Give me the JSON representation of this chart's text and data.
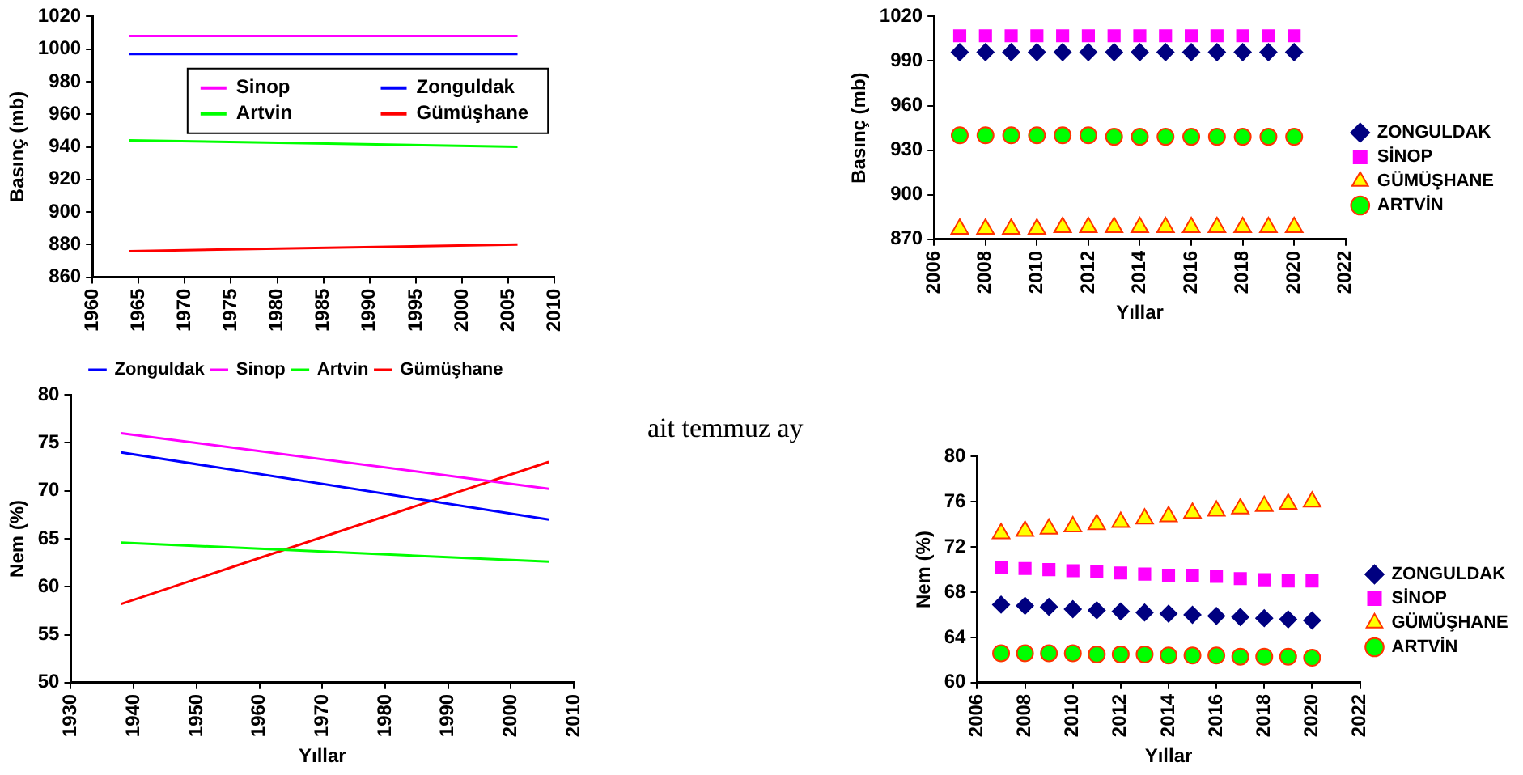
{
  "chart_data": [
    {
      "type": "line",
      "ylabel": "Basınç (mb)",
      "x": [
        1964,
        2006
      ],
      "xlim": [
        1960,
        2010
      ],
      "xticks": [
        1960,
        1965,
        1970,
        1975,
        1980,
        1985,
        1990,
        1995,
        2000,
        2005,
        2010
      ],
      "ylim": [
        860,
        1020
      ],
      "yticks": [
        860,
        880,
        900,
        920,
        940,
        960,
        980,
        1000,
        1020
      ],
      "grid": false,
      "legend": "top right",
      "marker": "none",
      "series": [
        {
          "name": "Sinop",
          "color": "#ff00ff",
          "values": [
            1008,
            1008
          ]
        },
        {
          "name": "Zonguldak",
          "color": "#0000ff",
          "values": [
            997,
            997
          ]
        },
        {
          "name": "Artvin",
          "color": "#00ff00",
          "values": [
            944,
            940
          ]
        },
        {
          "name": "Gümüşhane",
          "color": "#ff0000",
          "values": [
            876,
            880
          ]
        }
      ]
    },
    {
      "type": "scatter",
      "xlabel": "Yıllar",
      "ylabel": "Basınç (mb)",
      "x": [
        2007,
        2008,
        2009,
        2010,
        2011,
        2012,
        2013,
        2014,
        2015,
        2016,
        2017,
        2018,
        2019,
        2020
      ],
      "xlim": [
        2006,
        2022
      ],
      "xticks": [
        2006,
        2008,
        2010,
        2012,
        2014,
        2016,
        2018,
        2020,
        2022
      ],
      "ylim": [
        870,
        1020
      ],
      "yticks": [
        870,
        900,
        930,
        960,
        990,
        1020
      ],
      "grid": false,
      "legend": "right",
      "series": [
        {
          "name": "ZONGULDAK",
          "color": "#000080",
          "marker": "diamond",
          "values": [
            996,
            996,
            996,
            996,
            996,
            996,
            996,
            996,
            996,
            996,
            996,
            996,
            996,
            996
          ]
        },
        {
          "name": "SİNOP",
          "color": "#ff00ff",
          "marker": "square",
          "values": [
            1007,
            1007,
            1007,
            1007,
            1007,
            1007,
            1007,
            1007,
            1007,
            1007,
            1007,
            1007,
            1007,
            1007
          ]
        },
        {
          "name": "GÜMÜŞHANE",
          "color": "#ffff00",
          "marker": "triangle",
          "values": [
            877,
            877,
            877,
            877,
            878,
            878,
            878,
            878,
            878,
            878,
            878,
            878,
            878,
            878
          ]
        },
        {
          "name": "ARTVİN",
          "color": "#00ff00",
          "marker": "circle",
          "values": [
            940,
            940,
            940,
            940,
            940,
            940,
            939,
            939,
            939,
            939,
            939,
            939,
            939,
            939
          ]
        }
      ]
    },
    {
      "type": "line",
      "xlabel": "Yıllar",
      "ylabel": "Nem (%)",
      "x": [
        1938,
        2006
      ],
      "xlim": [
        1930,
        2010
      ],
      "xticks": [
        1930,
        1940,
        1950,
        1960,
        1970,
        1980,
        1990,
        2000,
        2010
      ],
      "ylim": [
        50,
        80
      ],
      "yticks": [
        50,
        55,
        60,
        65,
        70,
        75,
        80
      ],
      "grid": false,
      "legend": "top",
      "marker": "none",
      "series": [
        {
          "name": "Zonguldak",
          "color": "#0000ff",
          "values": [
            74,
            67
          ]
        },
        {
          "name": "Sinop",
          "color": "#ff00ff",
          "values": [
            76,
            70.2
          ]
        },
        {
          "name": "Artvin",
          "color": "#00ff00",
          "values": [
            64.6,
            62.6
          ]
        },
        {
          "name": "Gümüşhane",
          "color": "#ff0000",
          "values": [
            58.2,
            73
          ]
        }
      ]
    },
    {
      "type": "other",
      "annotations": [
        "ait temmuz ay"
      ]
    },
    {
      "type": "scatter",
      "xlabel": "Yıllar",
      "ylabel": "Nem (%)",
      "x": [
        2007,
        2008,
        2009,
        2010,
        2011,
        2012,
        2013,
        2014,
        2015,
        2016,
        2017,
        2018,
        2019,
        2020
      ],
      "xlim": [
        2006,
        2022
      ],
      "xticks": [
        2006,
        2008,
        2010,
        2012,
        2014,
        2016,
        2018,
        2020,
        2022
      ],
      "ylim": [
        60,
        80
      ],
      "yticks": [
        60,
        64,
        68,
        72,
        76,
        80
      ],
      "grid": false,
      "legend": "right",
      "series": [
        {
          "name": "ZONGULDAK",
          "color": "#000080",
          "marker": "diamond",
          "values": [
            66.9,
            66.8,
            66.7,
            66.5,
            66.4,
            66.3,
            66.2,
            66.1,
            66.0,
            65.9,
            65.8,
            65.7,
            65.6,
            65.5
          ]
        },
        {
          "name": "SİNOP",
          "color": "#ff00ff",
          "marker": "square",
          "values": [
            70.2,
            70.1,
            70.0,
            69.9,
            69.8,
            69.7,
            69.6,
            69.5,
            69.5,
            69.4,
            69.2,
            69.1,
            69.0,
            69.0
          ]
        },
        {
          "name": "GÜMÜŞHANE",
          "color": "#ffff00",
          "marker": "triangle",
          "values": [
            73.2,
            73.4,
            73.6,
            73.8,
            74.0,
            74.2,
            74.5,
            74.7,
            75.0,
            75.2,
            75.4,
            75.6,
            75.8,
            76.0
          ]
        },
        {
          "name": "ARTVİN",
          "color": "#00ff00",
          "marker": "circle",
          "values": [
            62.6,
            62.6,
            62.6,
            62.6,
            62.5,
            62.5,
            62.5,
            62.4,
            62.4,
            62.4,
            62.3,
            62.3,
            62.3,
            62.2
          ]
        }
      ]
    }
  ]
}
